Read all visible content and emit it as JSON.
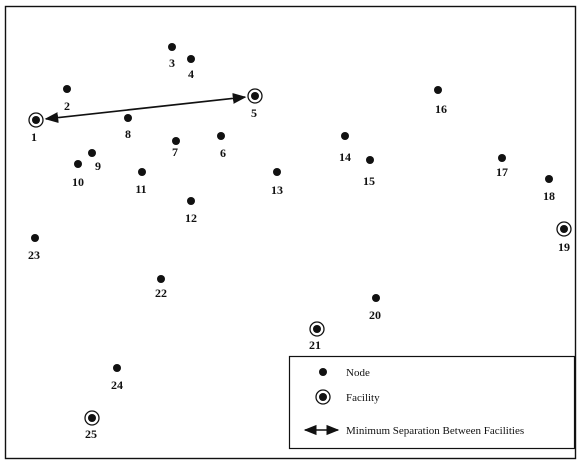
{
  "nodes": [
    {
      "id": "1",
      "label": "1",
      "facility": true
    },
    {
      "id": "2",
      "label": "2",
      "facility": false
    },
    {
      "id": "3",
      "label": "3",
      "facility": false
    },
    {
      "id": "4",
      "label": "4",
      "facility": false
    },
    {
      "id": "5",
      "label": "5",
      "facility": true
    },
    {
      "id": "6",
      "label": "6",
      "facility": false
    },
    {
      "id": "7",
      "label": "7",
      "facility": false
    },
    {
      "id": "8",
      "label": "8",
      "facility": false
    },
    {
      "id": "9",
      "label": "9",
      "facility": false
    },
    {
      "id": "10",
      "label": "10",
      "facility": false
    },
    {
      "id": "11",
      "label": "11",
      "facility": false
    },
    {
      "id": "12",
      "label": "12",
      "facility": false
    },
    {
      "id": "13",
      "label": "13",
      "facility": false
    },
    {
      "id": "14",
      "label": "14",
      "facility": false
    },
    {
      "id": "15",
      "label": "15",
      "facility": false
    },
    {
      "id": "16",
      "label": "16",
      "facility": false
    },
    {
      "id": "17",
      "label": "17",
      "facility": false
    },
    {
      "id": "18",
      "label": "18",
      "facility": false
    },
    {
      "id": "19",
      "label": "19",
      "facility": true
    },
    {
      "id": "20",
      "label": "20",
      "facility": false
    },
    {
      "id": "21",
      "label": "21",
      "facility": true
    },
    {
      "id": "22",
      "label": "22",
      "facility": false
    },
    {
      "id": "23",
      "label": "23",
      "facility": false
    },
    {
      "id": "24",
      "label": "24",
      "facility": false
    },
    {
      "id": "25",
      "label": "25",
      "facility": true
    }
  ],
  "min_separation": {
    "from": "1",
    "to": "5"
  },
  "legend": {
    "node_label": "Node",
    "facility_label": "Facility",
    "separation_label": "Minimum Separation Between Facilities"
  }
}
